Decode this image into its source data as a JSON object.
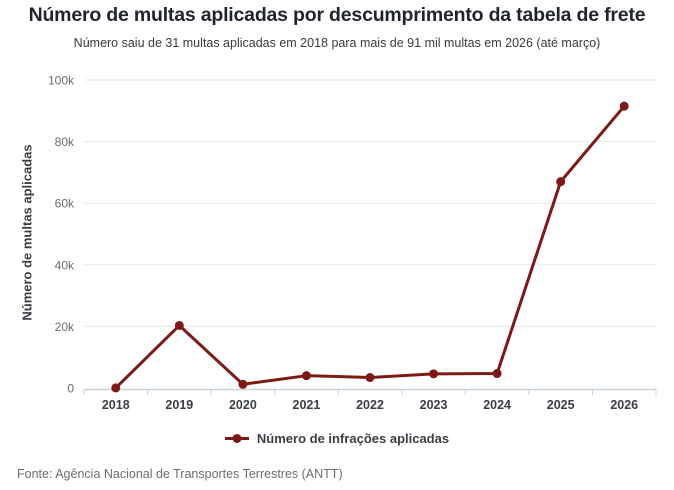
{
  "header": {
    "title": "Número de multas aplicadas por descumprimento da tabela de frete",
    "subtitle": "Número saiu de 31 multas aplicadas em 2018 para mais de 91 mil multas em 2026 (até março)"
  },
  "footer": {
    "source": "Fonte: Agência Nacional de Transportes Terrestres (ANTT)"
  },
  "colors": {
    "line": "#7d1a16",
    "grid": "#e7e7e7",
    "axis": "#c7d2da",
    "tick_label": "#6b6b6b",
    "x_label": "#3a3e45",
    "title": "#1f242e"
  },
  "chart_data": {
    "type": "line",
    "title": "Número de multas aplicadas por descumprimento da tabela de frete",
    "subtitle": "Número saiu de 31 multas aplicadas em 2018 para mais de 91 mil multas em 2026 (até março)",
    "categories": [
      "2018",
      "2019",
      "2020",
      "2021",
      "2022",
      "2023",
      "2024",
      "2025",
      "2026"
    ],
    "series": [
      {
        "name": "Número de infrações aplicadas",
        "values": [
          31,
          20300,
          1200,
          4000,
          3400,
          4600,
          4700,
          67000,
          91500
        ]
      }
    ],
    "xlabel": "",
    "ylabel": "Número de multas aplicadas",
    "ylim": [
      0,
      100000
    ],
    "ytick_values": [
      0,
      20000,
      40000,
      60000,
      80000,
      100000
    ],
    "ytick_labels": [
      "0",
      "20k",
      "40k",
      "60k",
      "80k",
      "100k"
    ],
    "grid": true,
    "legend_position": "bottom",
    "annotation": "Fonte: Agência Nacional de Transportes Terrestres (ANTT)"
  }
}
